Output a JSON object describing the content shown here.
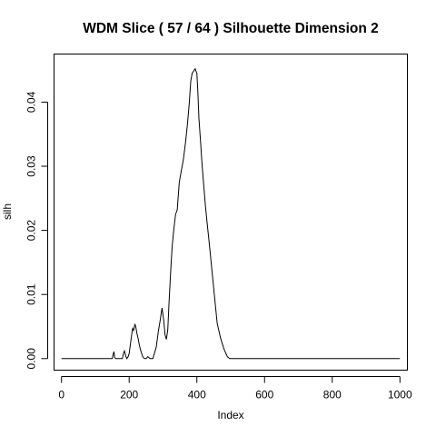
{
  "chart_data": {
    "type": "line",
    "title": "WDM Slice ( 57 / 64 )  Silhouette Dimension 2",
    "xlabel": "Index",
    "ylabel": "silh",
    "xlim": [
      -22,
      1022
    ],
    "ylim": [
      -0.0018,
      0.0475
    ],
    "grid": false,
    "legend": "none",
    "xticks": [
      0,
      200,
      400,
      600,
      800,
      1000
    ],
    "xtick_labels": [
      "0",
      "200",
      "400",
      "600",
      "800",
      "1000"
    ],
    "yticks": [
      0.0,
      0.01,
      0.02,
      0.03,
      0.04
    ],
    "ytick_labels": [
      "0.00",
      "0.01",
      "0.02",
      "0.03",
      "0.04"
    ],
    "series": [
      {
        "color": "#000000",
        "x": [
          0,
          150,
          152,
          155,
          157,
          160,
          180,
          183,
          186,
          190,
          193,
          197,
          200,
          203,
          207,
          210,
          213,
          217,
          220,
          223,
          227,
          230,
          235,
          240,
          245,
          250,
          255,
          262,
          270,
          280,
          286,
          292,
          297,
          302,
          306,
          310,
          314,
          318,
          323,
          327,
          332,
          337,
          342,
          348,
          354,
          360,
          366,
          372,
          377,
          382,
          386,
          390,
          395,
          400,
          403,
          406,
          410,
          415,
          420,
          425,
          430,
          435,
          440,
          445,
          450,
          460,
          470,
          480,
          490,
          497,
          500,
          1000
        ],
        "y": [
          0.0,
          0.0,
          0.0005,
          0.0011,
          0.0002,
          0.0,
          0.0,
          0.0008,
          0.0012,
          0.0004,
          0.0,
          0.0003,
          0.0008,
          0.002,
          0.0036,
          0.0047,
          0.0044,
          0.0054,
          0.0048,
          0.0039,
          0.003,
          0.0021,
          0.0011,
          0.0003,
          0.0,
          0.0,
          0.0003,
          0.0,
          0.0,
          0.0018,
          0.0042,
          0.0061,
          0.0079,
          0.006,
          0.0037,
          0.003,
          0.0045,
          0.009,
          0.014,
          0.0175,
          0.0202,
          0.0225,
          0.0232,
          0.0275,
          0.0293,
          0.031,
          0.0335,
          0.0365,
          0.0395,
          0.0433,
          0.0445,
          0.0448,
          0.0452,
          0.0445,
          0.0415,
          0.0375,
          0.0345,
          0.0305,
          0.0272,
          0.024,
          0.0213,
          0.0188,
          0.0162,
          0.0135,
          0.0108,
          0.0055,
          0.0032,
          0.0015,
          0.0003,
          0.0,
          0.0,
          0.0
        ]
      }
    ]
  }
}
